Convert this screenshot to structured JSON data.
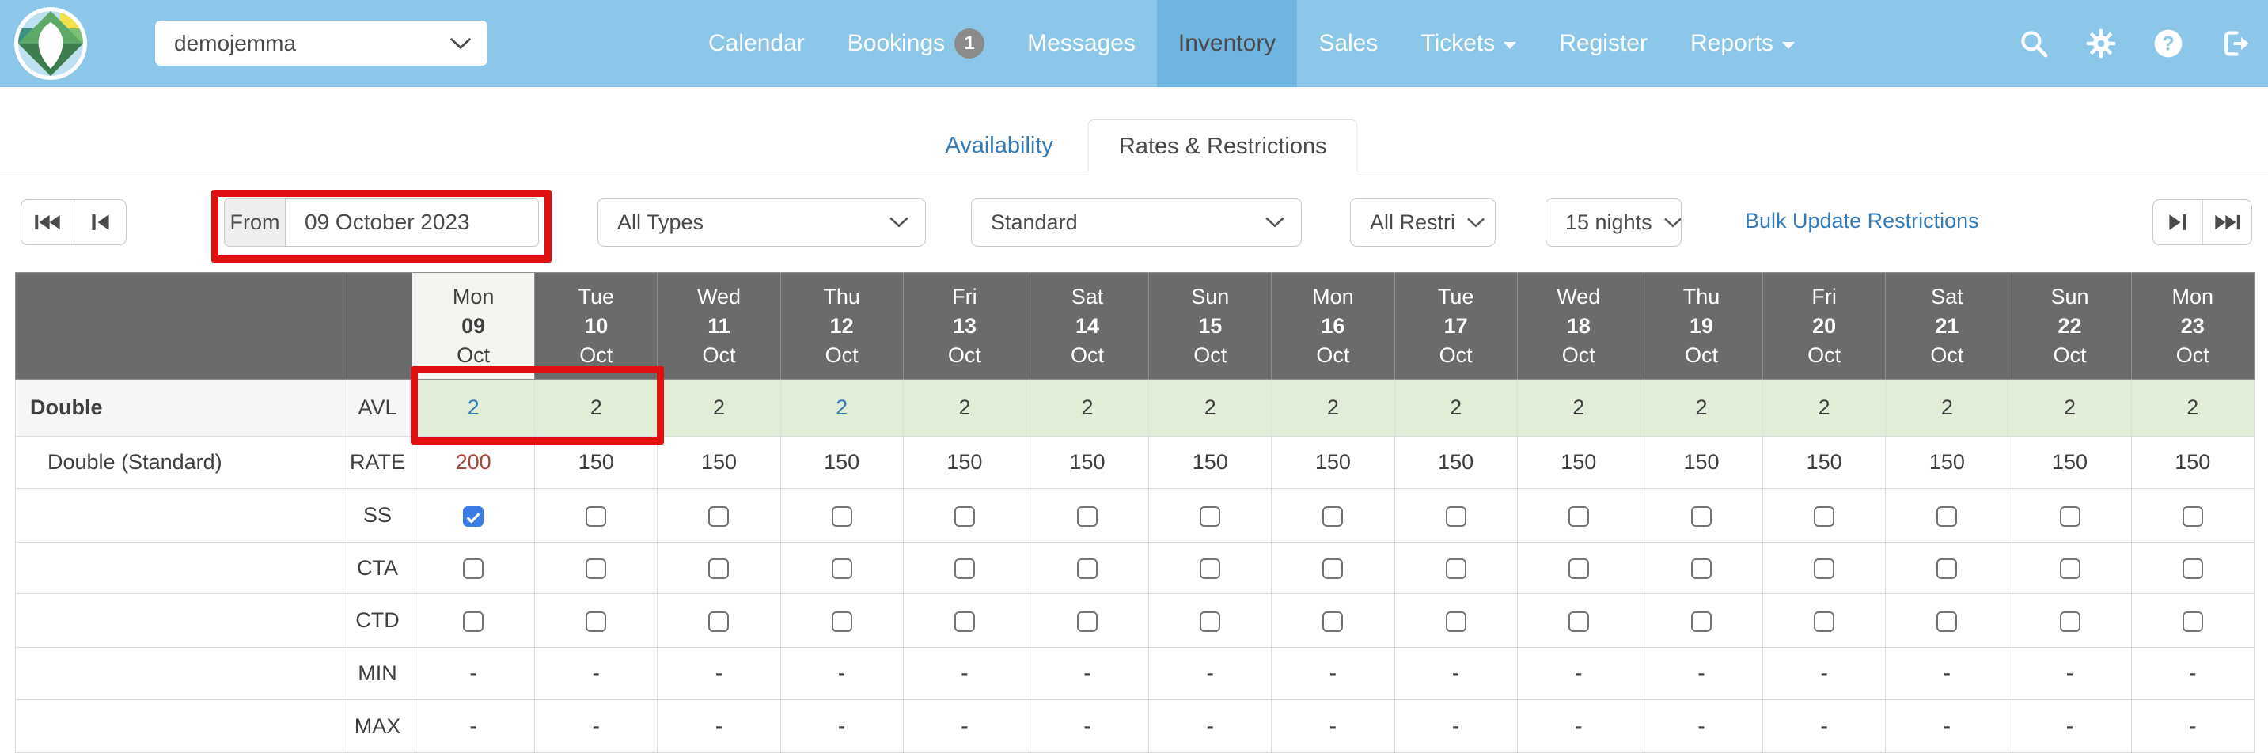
{
  "topbar": {
    "property_selector": {
      "value": "demojemma"
    },
    "nav": [
      {
        "label": "Calendar"
      },
      {
        "label": "Bookings",
        "badge": "1"
      },
      {
        "label": "Messages"
      },
      {
        "label": "Inventory",
        "active": true
      },
      {
        "label": "Sales"
      },
      {
        "label": "Tickets",
        "caret": true
      },
      {
        "label": "Register"
      },
      {
        "label": "Reports",
        "caret": true
      }
    ],
    "icons": [
      "search-icon",
      "gear-icon",
      "help-icon",
      "logout-icon"
    ]
  },
  "tabs": {
    "availability": "Availability",
    "rates_restrictions": "Rates & Restrictions"
  },
  "filters": {
    "from_label": "From",
    "from_value": "09 October 2023",
    "type_filter": "All Types",
    "rate_plan": "Standard",
    "restrictions_filter": "All Restri",
    "nights": "15 nights",
    "bulk_link": "Bulk Update Restrictions"
  },
  "table": {
    "dates": [
      {
        "day": "Mon",
        "num": "09",
        "mon": "Oct",
        "highlight": true
      },
      {
        "day": "Tue",
        "num": "10",
        "mon": "Oct"
      },
      {
        "day": "Wed",
        "num": "11",
        "mon": "Oct"
      },
      {
        "day": "Thu",
        "num": "12",
        "mon": "Oct"
      },
      {
        "day": "Fri",
        "num": "13",
        "mon": "Oct"
      },
      {
        "day": "Sat",
        "num": "14",
        "mon": "Oct"
      },
      {
        "day": "Sun",
        "num": "15",
        "mon": "Oct"
      },
      {
        "day": "Mon",
        "num": "16",
        "mon": "Oct"
      },
      {
        "day": "Tue",
        "num": "17",
        "mon": "Oct"
      },
      {
        "day": "Wed",
        "num": "18",
        "mon": "Oct"
      },
      {
        "day": "Thu",
        "num": "19",
        "mon": "Oct"
      },
      {
        "day": "Fri",
        "num": "20",
        "mon": "Oct"
      },
      {
        "day": "Sat",
        "num": "21",
        "mon": "Oct"
      },
      {
        "day": "Sun",
        "num": "22",
        "mon": "Oct"
      },
      {
        "day": "Mon",
        "num": "23",
        "mon": "Oct"
      }
    ],
    "rows": [
      {
        "id": "avl",
        "name": "Double",
        "label": "AVL",
        "type": "text",
        "values": [
          "2",
          "2",
          "2",
          "2",
          "2",
          "2",
          "2",
          "2",
          "2",
          "2",
          "2",
          "2",
          "2",
          "2",
          "2"
        ],
        "value_styles": {
          "0": "link",
          "3": "link"
        }
      },
      {
        "id": "rate",
        "name": "Double (Standard)",
        "label": "RATE",
        "type": "text",
        "values": [
          "200",
          "150",
          "150",
          "150",
          "150",
          "150",
          "150",
          "150",
          "150",
          "150",
          "150",
          "150",
          "150",
          "150",
          "150"
        ],
        "value_styles": {
          "0": "rate-red"
        }
      },
      {
        "id": "ss",
        "name": "",
        "label": "SS",
        "type": "checkbox",
        "checked": [
          0
        ]
      },
      {
        "id": "cta",
        "name": "",
        "label": "CTA",
        "type": "checkbox",
        "checked": []
      },
      {
        "id": "ctd",
        "name": "",
        "label": "CTD",
        "type": "checkbox",
        "checked": []
      },
      {
        "id": "min",
        "name": "",
        "label": "MIN",
        "type": "text",
        "values": [
          "-",
          "-",
          "-",
          "-",
          "-",
          "-",
          "-",
          "-",
          "-",
          "-",
          "-",
          "-",
          "-",
          "-",
          "-"
        ]
      },
      {
        "id": "max",
        "name": "",
        "label": "MAX",
        "type": "text",
        "values": [
          "-",
          "-",
          "-",
          "-",
          "-",
          "-",
          "-",
          "-",
          "-",
          "-",
          "-",
          "-",
          "-",
          "-",
          "-"
        ]
      }
    ]
  },
  "colors": {
    "topbar_blue": "#8CC7E9",
    "topbar_active_blue": "#6FB5E2",
    "link_blue": "#337AB7",
    "header_gray": "#6A6B6A",
    "today_col_bg": "#F4F4F1",
    "avl_row_green": "#E2EDD8",
    "rate_special_red": "#A9453F",
    "checkbox_blue": "#3B7CE8",
    "badge_gray": "#8B8B8B",
    "annotation_red": "#E01010"
  }
}
